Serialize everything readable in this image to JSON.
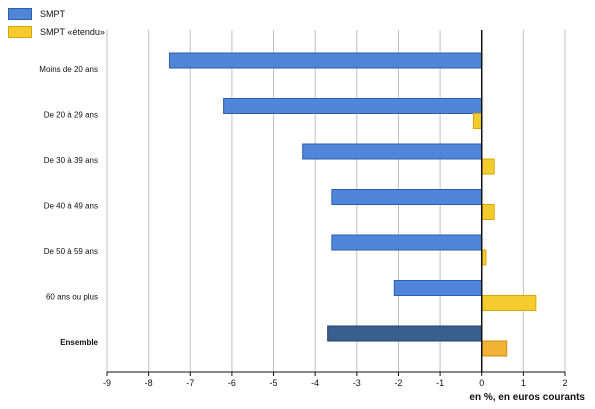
{
  "chart_data": {
    "type": "bar",
    "orientation": "horizontal",
    "categories": [
      "Moins de 20 ans",
      "De 20 à 29 ans",
      "De 30 à 39 ans",
      "De 40 à 49 ans",
      "De 50 à 59 ans",
      "60 ans ou plus",
      "Ensemble"
    ],
    "series": [
      {
        "name": "SMPT",
        "values": [
          -7.5,
          -6.2,
          -4.3,
          -3.6,
          -3.6,
          -2.1,
          -3.7
        ]
      },
      {
        "name": "SMPT «étendu»",
        "values": [
          0.0,
          -0.2,
          0.3,
          0.3,
          0.1,
          1.3,
          0.6
        ]
      }
    ],
    "xlim": [
      -9,
      2
    ],
    "xticks": [
      "-9",
      "-8",
      "-7",
      "-6",
      "-5",
      "-4",
      "-3",
      "-2",
      "-1",
      "0",
      "1",
      "2"
    ],
    "xlabel": "en %, en euros courants",
    "ylabel": "",
    "title": "",
    "grid": true,
    "legend_position": "top-left",
    "highlight_category": "Ensemble",
    "colors": {
      "smpt": "#4f86d9",
      "smpt_border": "#2f5ea8",
      "smpt_ensemble": "#3a5f8f",
      "smpt_ensemble_border": "#23406a",
      "etendu": "#f5cc30",
      "etendu_border": "#d9a900",
      "etendu_ensemble": "#f2b233",
      "etendu_ensemble_border": "#cf8f10",
      "grid": "#c0c0c0",
      "axis": "#111111"
    }
  }
}
